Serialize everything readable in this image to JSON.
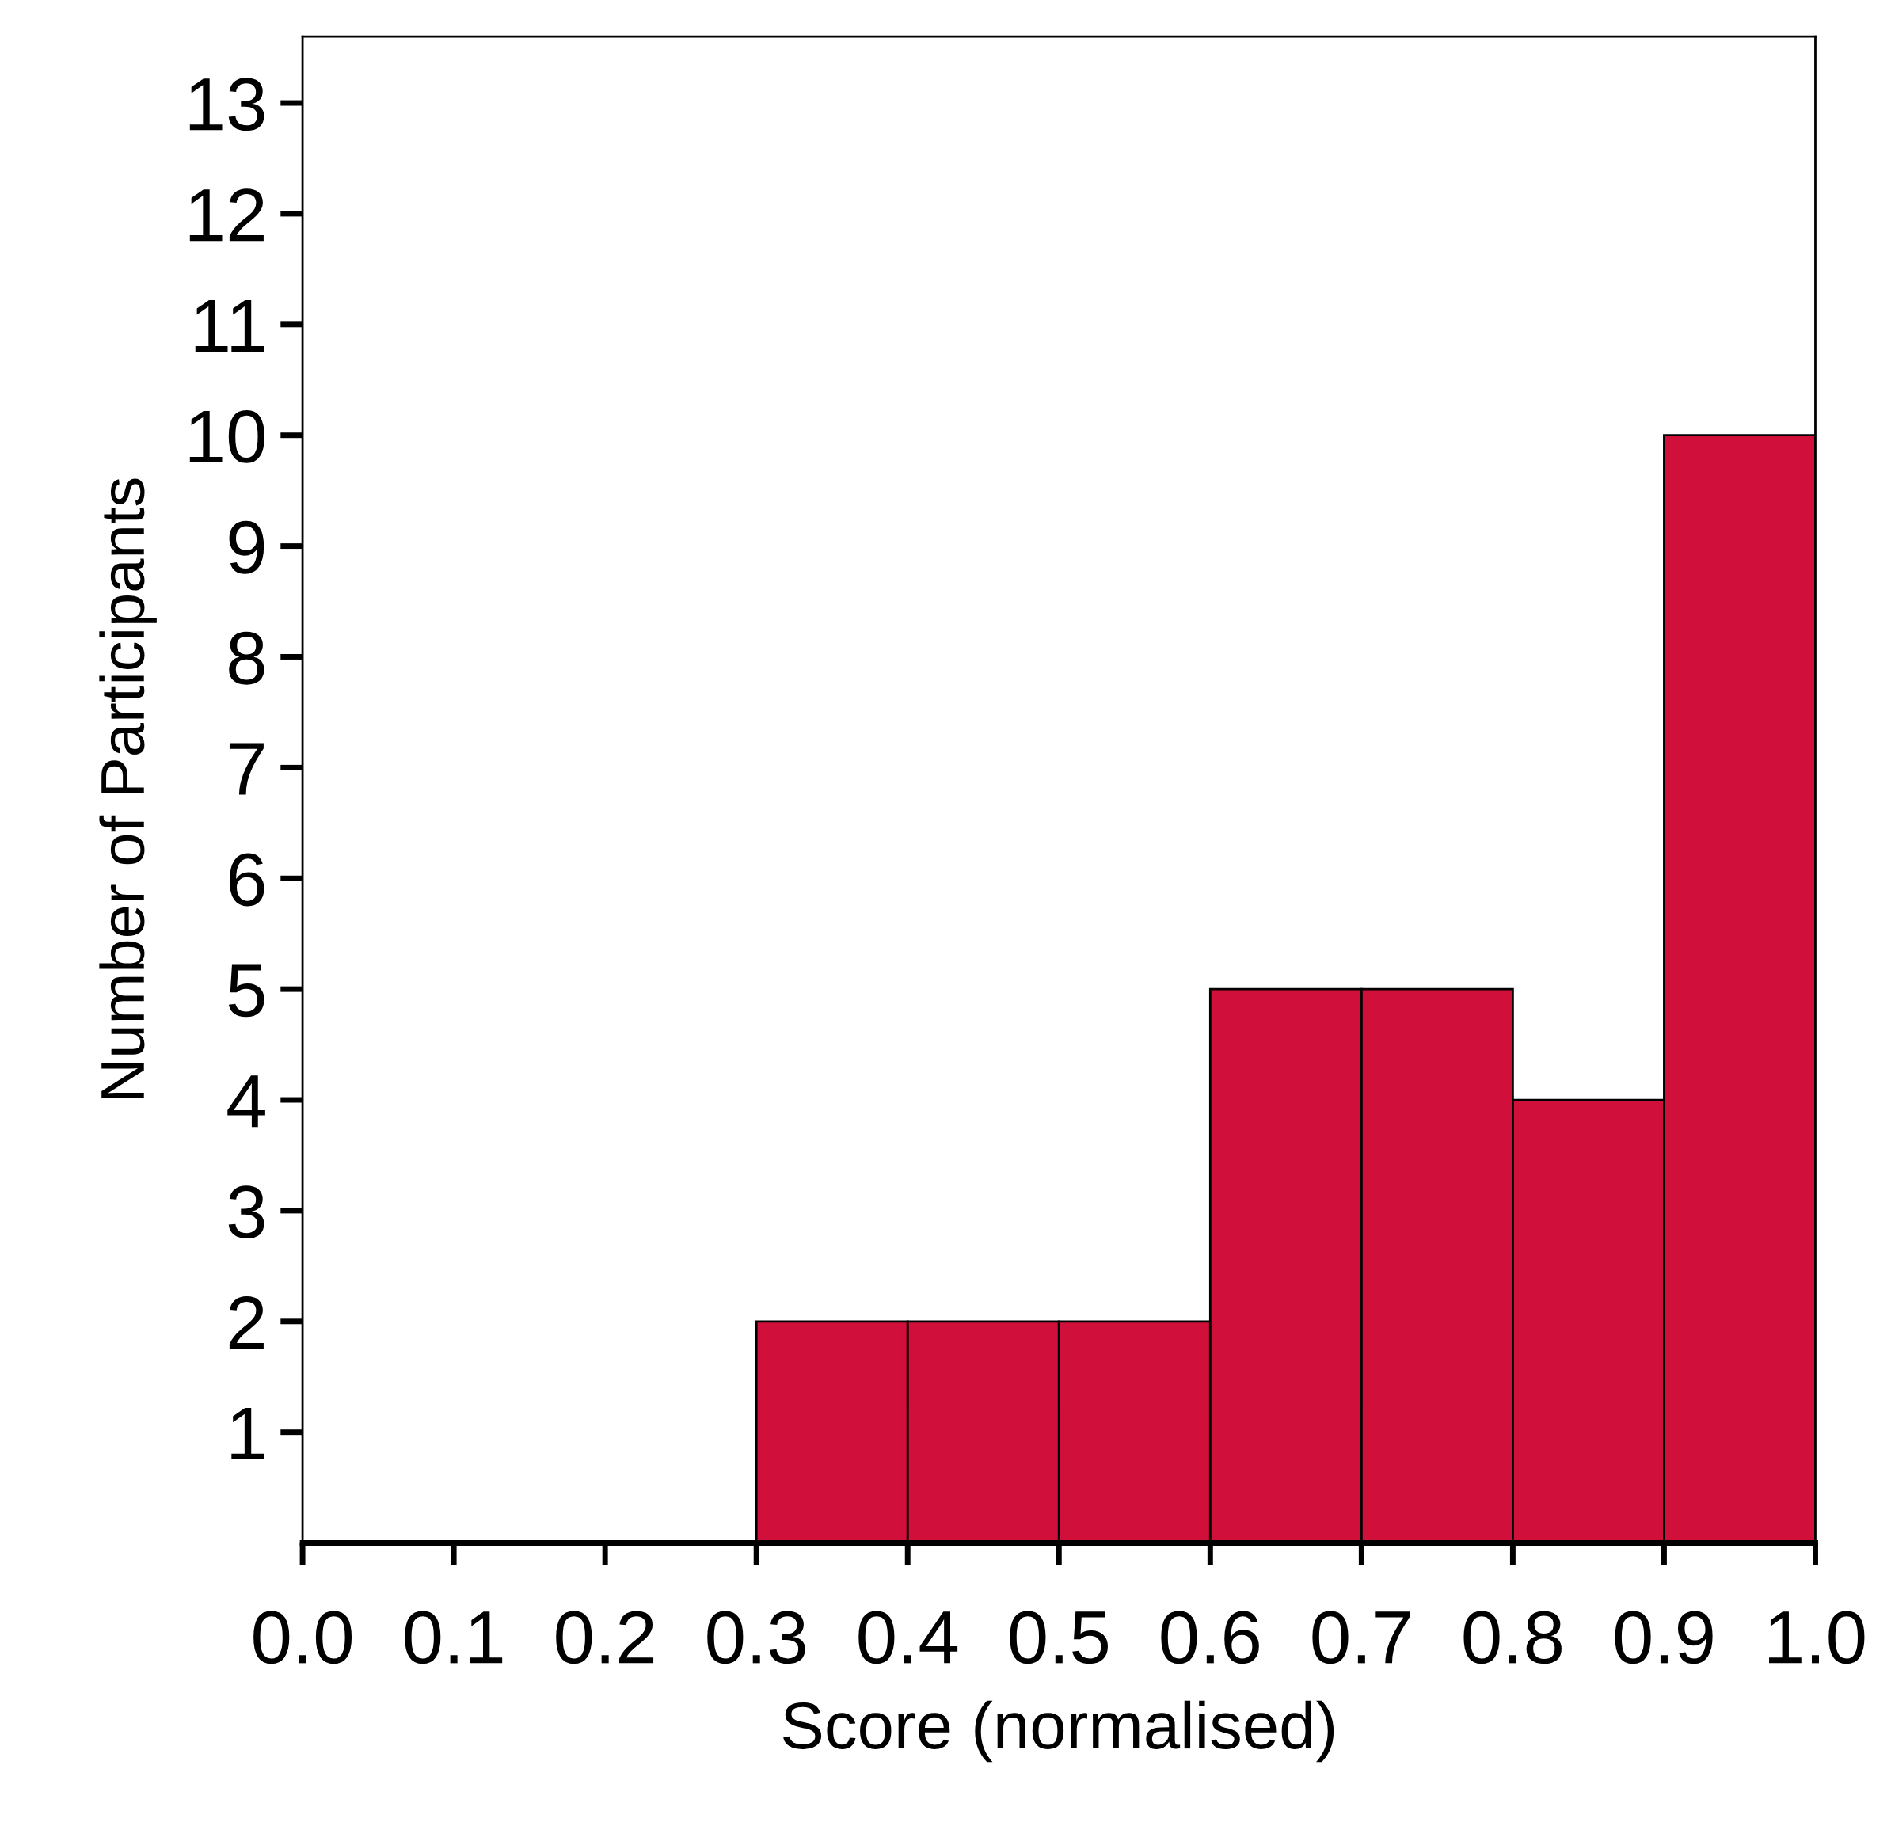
{
  "chart_data": {
    "type": "histogram",
    "xlabel": "Score (normalised)",
    "ylabel": "Number of Participants",
    "bins": [
      0.0,
      0.1,
      0.2,
      0.3,
      0.4,
      0.5,
      0.6,
      0.7,
      0.8,
      0.9,
      1.0
    ],
    "values": [
      0,
      0,
      0,
      2,
      2,
      2,
      5,
      5,
      4,
      10
    ],
    "color": "#d0103a",
    "xlim": [
      0.0,
      1.0
    ],
    "ylim": [
      0,
      13.6
    ],
    "xticks": [
      {
        "value": 0.0,
        "label": "0.0"
      },
      0.1,
      0.2,
      0.3,
      0.4,
      0.5,
      0.6,
      0.7,
      0.8,
      0.9,
      {
        "value": 1.0,
        "label": "1.0"
      }
    ],
    "yticks": [
      1,
      2,
      3,
      4,
      5,
      6,
      7,
      8,
      9,
      10,
      11,
      12,
      13
    ],
    "grid": false
  }
}
